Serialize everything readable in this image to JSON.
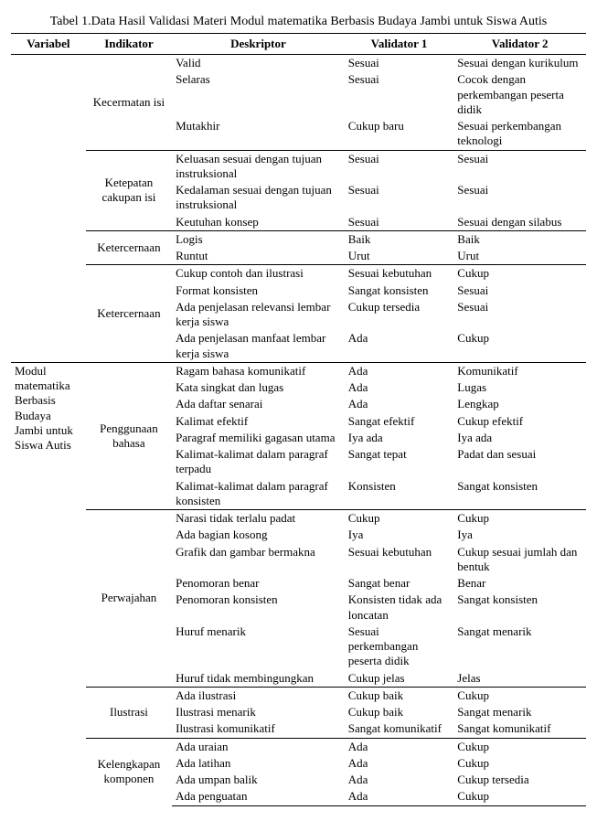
{
  "caption": "Tabel 1.Data Hasil Validasi Materi Modul matematika Berbasis  Budaya Jambi  untuk Siswa Autis",
  "headers": {
    "variabel": "Variabel",
    "indikator": "Indikator",
    "deskriptor": "Deskriptor",
    "validator1": "Validator 1",
    "validator2": "Validator 2"
  },
  "variabel": "Modul matematika Berbasis Budaya Jambi untuk Siswa Autis",
  "groups": [
    {
      "indikator": "Kecermatan isi",
      "rows": [
        {
          "d": "Valid",
          "v1": "Sesuai",
          "v2": "Sesuai dengan kurikulum"
        },
        {
          "d": "Selaras",
          "v1": "Sesuai",
          "v2": "Cocok dengan perkembangan peserta didik"
        },
        {
          "d": "Mutakhir",
          "v1": "Cukup baru",
          "v2": "Sesuai perkembangan teknologi"
        }
      ]
    },
    {
      "indikator": "Ketepatan cakupan isi",
      "rows": [
        {
          "d": "Keluasan sesuai dengan tujuan instruksional",
          "v1": "Sesuai",
          "v2": "Sesuai"
        },
        {
          "d": "Kedalaman sesuai dengan tujuan instruksional",
          "v1": "Sesuai",
          "v2": "Sesuai"
        },
        {
          "d": "Keutuhan konsep",
          "v1": "Sesuai",
          "v2": "Sesuai dengan silabus"
        }
      ]
    },
    {
      "indikator": "Ketercernaan",
      "rows": [
        {
          "d": "Logis",
          "v1": "Baik",
          "v2": "Baik"
        },
        {
          "d": "Runtut",
          "v1": "Urut",
          "v2": "Urut"
        }
      ]
    },
    {
      "indikator": "Ketercernaan",
      "rows": [
        {
          "d": "Cukup contoh dan ilustrasi",
          "v1": "Sesuai kebutuhan",
          "v2": "Cukup"
        },
        {
          "d": "Format konsisten",
          "v1": "Sangat konsisten",
          "v2": "Sesuai"
        },
        {
          "d": "Ada penjelasan relevansi lembar kerja siswa",
          "v1": "Cukup tersedia",
          "v2": "Sesuai"
        },
        {
          "d": "Ada penjelasan manfaat lembar kerja siswa",
          "v1": "Ada",
          "v2": "Cukup"
        }
      ]
    },
    {
      "indikator": "Penggunaan bahasa",
      "rows": [
        {
          "d": "Ragam bahasa komunikatif",
          "v1": "Ada",
          "v2": "Komunikatif"
        },
        {
          "d": "Kata singkat dan lugas",
          "v1": "Ada",
          "v2": "Lugas"
        },
        {
          "d": "Ada daftar senarai",
          "v1": "Ada",
          "v2": "Lengkap"
        },
        {
          "d": "Kalimat efektif",
          "v1": "Sangat efektif",
          "v2": "Cukup efektif"
        },
        {
          "d": "Paragraf memiliki gagasan utama",
          "v1": "Iya ada",
          "v2": "Iya ada"
        },
        {
          "d": "Kalimat-kalimat dalam paragraf terpadu",
          "v1": "Sangat tepat",
          "v2": "Padat dan sesuai"
        },
        {
          "d": "Kalimat-kalimat dalam paragraf konsisten",
          "v1": "Konsisten",
          "v2": "Sangat konsisten"
        }
      ]
    },
    {
      "indikator": "Perwajahan",
      "rows": [
        {
          "d": "Narasi tidak terlalu padat",
          "v1": "Cukup",
          "v2": "Cukup"
        },
        {
          "d": "Ada bagian kosong",
          "v1": "Iya",
          "v2": "Iya"
        },
        {
          "d": "Grafik dan gambar bermakna",
          "v1": "Sesuai kebutuhan",
          "v2": "Cukup sesuai jumlah dan bentuk"
        },
        {
          "d": "Penomoran benar",
          "v1": "Sangat benar",
          "v2": "Benar"
        },
        {
          "d": "Penomoran konsisten",
          "v1": "Konsisten tidak ada loncatan",
          "v2": "Sangat konsisten"
        },
        {
          "d": "Huruf menarik",
          "v1": "Sesuai perkembangan peserta didik",
          "v2": "Sangat menarik"
        },
        {
          "d": "Huruf tidak membingungkan",
          "v1": "Cukup jelas",
          "v2": "Jelas"
        }
      ]
    },
    {
      "indikator": "Ilustrasi",
      "rows": [
        {
          "d": "Ada ilustrasi",
          "v1": "Cukup baik",
          "v2": "Cukup"
        },
        {
          "d": "Ilustrasi menarik",
          "v1": "Cukup baik",
          "v2": "Sangat menarik"
        },
        {
          "d": "Ilustrasi komunikatif",
          "v1": "Sangat komunikatif",
          "v2": "Sangat komunikatif"
        }
      ]
    },
    {
      "indikator": "Kelengkapan komponen",
      "rows": [
        {
          "d": "Ada uraian",
          "v1": "Ada",
          "v2": "Cukup"
        },
        {
          "d": "Ada latihan",
          "v1": "Ada",
          "v2": "Cukup"
        },
        {
          "d": "Ada umpan balik",
          "v1": "Ada",
          "v2": "Cukup tersedia"
        },
        {
          "d": "Ada penguatan",
          "v1": "Ada",
          "v2": "Cukup"
        }
      ]
    }
  ]
}
